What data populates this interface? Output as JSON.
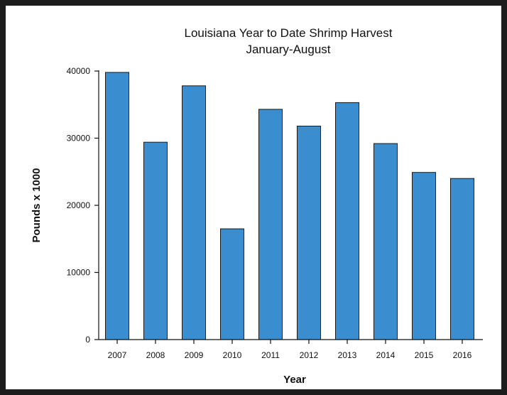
{
  "chart_data": {
    "type": "bar",
    "title": "Louisiana Year to Date Shrimp Harvest",
    "subtitle": "January-August",
    "xlabel": "Year",
    "ylabel": "Pounds x 1000",
    "categories": [
      "2007",
      "2008",
      "2009",
      "2010",
      "2011",
      "2012",
      "2013",
      "2014",
      "2015",
      "2016"
    ],
    "values": [
      39800,
      29400,
      37800,
      16500,
      34300,
      31800,
      35300,
      29200,
      24900,
      24000
    ],
    "ylim": [
      0,
      40000
    ],
    "yticks": [
      "0",
      "10000",
      "20000",
      "30000",
      "40000"
    ],
    "bar_color": "#3a8ed0",
    "bar_edge_color": "#1a1a1a",
    "grid": false,
    "legend": "none"
  }
}
